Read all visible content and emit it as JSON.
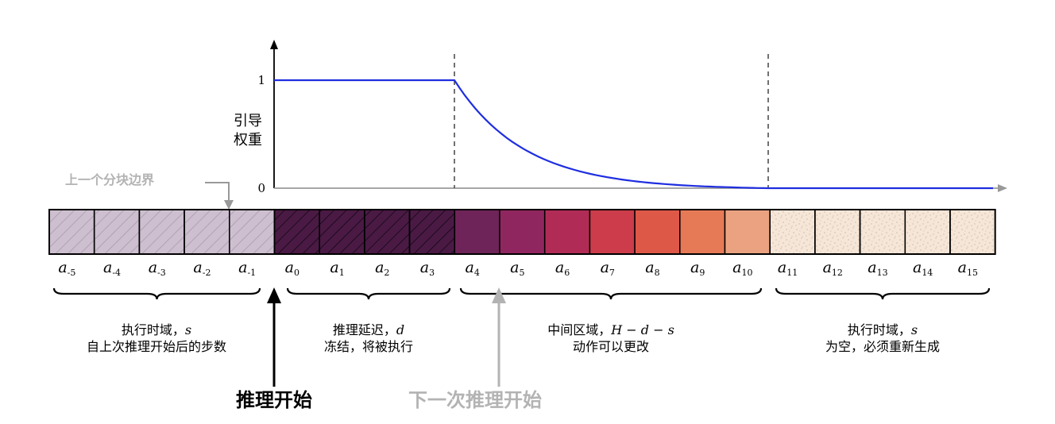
{
  "plot": {
    "y_label_lines": [
      "引导",
      "权重"
    ],
    "y_ticks": [
      "1",
      "0"
    ]
  },
  "prev_boundary_label": "上一个分块边界",
  "inference_start_label": "推理开始",
  "next_inference_label": "下一次推理开始",
  "actions": [
    {
      "base": "a",
      "sub": "-5",
      "group": "prev"
    },
    {
      "base": "a",
      "sub": "-4",
      "group": "prev"
    },
    {
      "base": "a",
      "sub": "-3",
      "group": "prev"
    },
    {
      "base": "a",
      "sub": "-2",
      "group": "prev"
    },
    {
      "base": "a",
      "sub": "-1",
      "group": "prev"
    },
    {
      "base": "a",
      "sub": "0",
      "group": "frozen"
    },
    {
      "base": "a",
      "sub": "1",
      "group": "frozen"
    },
    {
      "base": "a",
      "sub": "2",
      "group": "frozen"
    },
    {
      "base": "a",
      "sub": "3",
      "group": "frozen"
    },
    {
      "base": "a",
      "sub": "4",
      "group": "mid"
    },
    {
      "base": "a",
      "sub": "5",
      "group": "mid"
    },
    {
      "base": "a",
      "sub": "6",
      "group": "mid"
    },
    {
      "base": "a",
      "sub": "7",
      "group": "mid"
    },
    {
      "base": "a",
      "sub": "8",
      "group": "mid"
    },
    {
      "base": "a",
      "sub": "9",
      "group": "mid"
    },
    {
      "base": "a",
      "sub": "10",
      "group": "mid"
    },
    {
      "base": "a",
      "sub": "11",
      "group": "empty"
    },
    {
      "base": "a",
      "sub": "12",
      "group": "empty"
    },
    {
      "base": "a",
      "sub": "13",
      "group": "empty"
    },
    {
      "base": "a",
      "sub": "14",
      "group": "empty"
    },
    {
      "base": "a",
      "sub": "15",
      "group": "empty"
    }
  ],
  "colors": {
    "prev": "#cdbfcf",
    "frozen": "#4a1a45",
    "mid": [
      "#6e2458",
      "#90265f",
      "#b02c57",
      "#cc3c4a",
      "#de5848",
      "#e67a57",
      "#eaa280"
    ],
    "empty": "#f5e6d8",
    "curve": "#1f2ee0",
    "gray_text": "#b3b3b3"
  },
  "groups": [
    {
      "id": "exec-horizon-prev",
      "line1": "执行时域，",
      "var1": "s",
      "line2": "自上次推理开始后的步数"
    },
    {
      "id": "inference-delay",
      "line1": "推理延迟，",
      "var1": "d",
      "line2": "冻结，将被执行"
    },
    {
      "id": "intermediate-region",
      "line1": "中间区域，",
      "var1": "H − d − s",
      "line2": "动作可以更改"
    },
    {
      "id": "exec-horizon-empty",
      "line1": "执行时域，",
      "var1": "s",
      "line2": "为空，必须重新生成"
    }
  ]
}
